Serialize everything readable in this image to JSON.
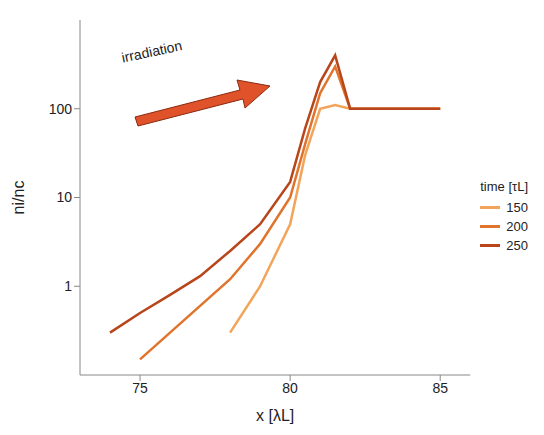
{
  "chart_data": {
    "type": "line",
    "title": "irradiation",
    "x_label": "x [λL]",
    "y_label": "ni/nc",
    "time_label": "time [τL]",
    "log": "y",
    "grid": false,
    "legend": "right",
    "x": [
      74,
      75,
      76,
      77,
      78,
      79,
      80,
      80.5,
      81,
      81.5,
      82,
      83,
      84,
      85
    ],
    "series": [
      {
        "name": "150",
        "color": "#f2a55a",
        "values": [
          null,
          null,
          null,
          null,
          0.3,
          1,
          5,
          30,
          100,
          110,
          100,
          100,
          100,
          100
        ]
      },
      {
        "name": "200",
        "color": "#e0742c",
        "values": [
          null,
          0.15,
          0.3,
          0.6,
          1.2,
          3,
          10,
          40,
          150,
          300,
          100,
          100,
          100,
          100
        ]
      },
      {
        "name": "250",
        "color": "#b8461a",
        "values": [
          0.3,
          0.5,
          0.8,
          1.3,
          2.5,
          5,
          15,
          60,
          200,
          400,
          100,
          100,
          100,
          100
        ]
      }
    ],
    "xlim": [
      73,
      86
    ],
    "xticks": [
      75,
      80,
      85
    ],
    "ylim": [
      0.1,
      1000
    ],
    "yticks": [
      1,
      10,
      100
    ]
  }
}
